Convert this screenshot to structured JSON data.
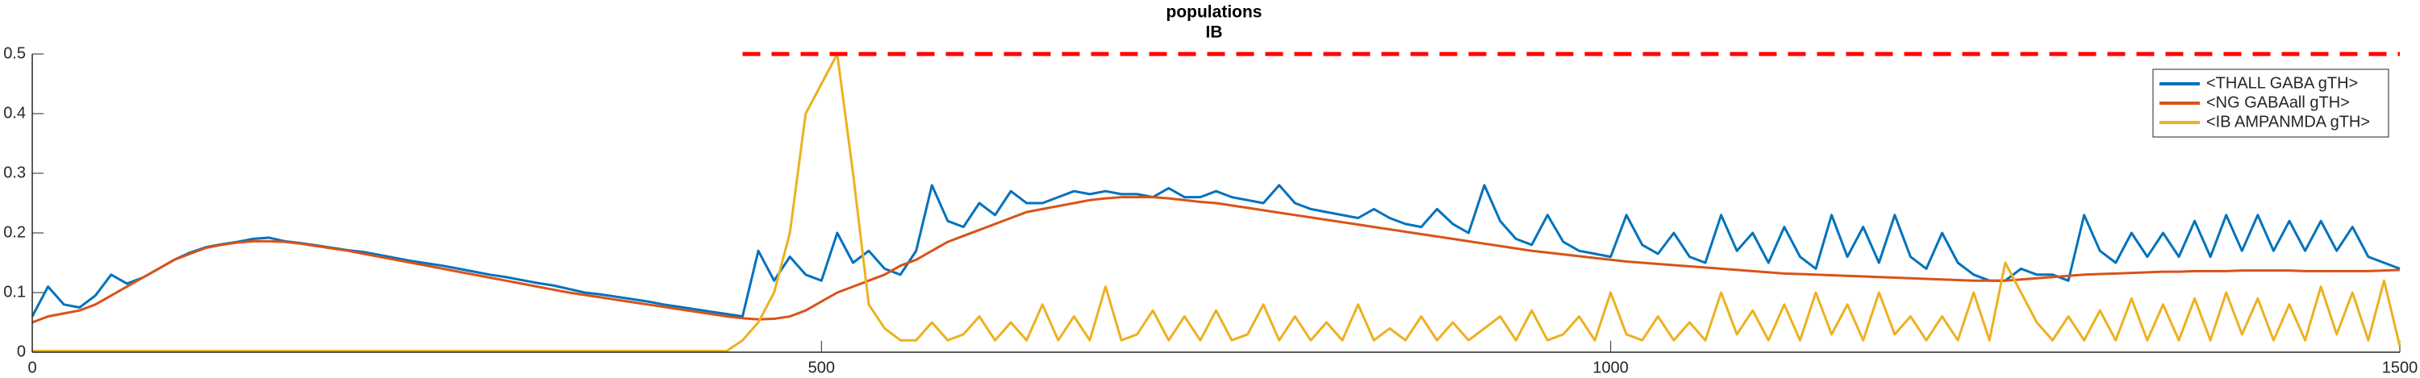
{
  "chart_data": {
    "type": "line",
    "title": "populations",
    "subtitle": "IB",
    "x": [
      0,
      10,
      20,
      30,
      40,
      50,
      60,
      70,
      80,
      90,
      100,
      110,
      120,
      130,
      140,
      150,
      160,
      170,
      180,
      190,
      200,
      210,
      220,
      230,
      240,
      250,
      260,
      270,
      280,
      290,
      300,
      310,
      320,
      330,
      340,
      350,
      360,
      370,
      380,
      390,
      400,
      410,
      420,
      430,
      440,
      450,
      460,
      470,
      480,
      490,
      500,
      510,
      520,
      530,
      540,
      550,
      560,
      570,
      580,
      590,
      600,
      610,
      620,
      630,
      640,
      650,
      660,
      670,
      680,
      690,
      700,
      710,
      720,
      730,
      740,
      750,
      760,
      770,
      780,
      790,
      800,
      810,
      820,
      830,
      840,
      850,
      860,
      870,
      880,
      890,
      900,
      910,
      920,
      930,
      940,
      950,
      960,
      970,
      980,
      990,
      1000,
      1010,
      1020,
      1030,
      1040,
      1050,
      1060,
      1070,
      1080,
      1090,
      1100,
      1110,
      1120,
      1130,
      1140,
      1150,
      1160,
      1170,
      1180,
      1190,
      1200,
      1210,
      1220,
      1230,
      1240,
      1250,
      1260,
      1270,
      1280,
      1290,
      1300,
      1310,
      1320,
      1330,
      1340,
      1350,
      1360,
      1370,
      1380,
      1390,
      1400,
      1410,
      1420,
      1430,
      1440,
      1450,
      1460,
      1470,
      1480,
      1490,
      1500
    ],
    "series": [
      {
        "name": "<THALL GABA gTH>",
        "color": "#0072bd",
        "values": [
          0.06,
          0.11,
          0.08,
          0.075,
          0.095,
          0.13,
          0.115,
          0.125,
          0.14,
          0.155,
          0.167,
          0.176,
          0.181,
          0.185,
          0.19,
          0.192,
          0.186,
          0.183,
          0.179,
          0.175,
          0.171,
          0.168,
          0.163,
          0.158,
          0.153,
          0.149,
          0.145,
          0.14,
          0.135,
          0.13,
          0.126,
          0.121,
          0.116,
          0.112,
          0.106,
          0.1,
          0.097,
          0.093,
          0.089,
          0.085,
          0.08,
          0.076,
          0.072,
          0.068,
          0.064,
          0.06,
          0.17,
          0.12,
          0.16,
          0.13,
          0.12,
          0.2,
          0.15,
          0.17,
          0.14,
          0.13,
          0.17,
          0.28,
          0.22,
          0.21,
          0.25,
          0.23,
          0.27,
          0.25,
          0.25,
          0.26,
          0.27,
          0.265,
          0.27,
          0.265,
          0.265,
          0.26,
          0.275,
          0.26,
          0.26,
          0.27,
          0.26,
          0.255,
          0.25,
          0.28,
          0.25,
          0.24,
          0.235,
          0.23,
          0.225,
          0.24,
          0.225,
          0.215,
          0.21,
          0.24,
          0.215,
          0.2,
          0.28,
          0.22,
          0.19,
          0.18,
          0.23,
          0.185,
          0.17,
          0.165,
          0.16,
          0.23,
          0.18,
          0.165,
          0.2,
          0.16,
          0.15,
          0.23,
          0.17,
          0.2,
          0.15,
          0.21,
          0.16,
          0.14,
          0.23,
          0.16,
          0.21,
          0.15,
          0.23,
          0.16,
          0.14,
          0.2,
          0.15,
          0.13,
          0.12,
          0.12,
          0.14,
          0.13,
          0.13,
          0.12,
          0.23,
          0.17,
          0.15,
          0.2,
          0.16,
          0.2,
          0.16,
          0.22,
          0.16,
          0.23,
          0.17,
          0.23,
          0.17,
          0.22,
          0.17,
          0.22,
          0.17,
          0.21,
          0.16,
          0.15,
          0.14
        ]
      },
      {
        "name": "<NG GABAall gTH>",
        "color": "#d95319",
        "values": [
          0.05,
          0.06,
          0.065,
          0.07,
          0.08,
          0.095,
          0.11,
          0.125,
          0.14,
          0.155,
          0.165,
          0.175,
          0.18,
          0.184,
          0.186,
          0.186,
          0.185,
          0.182,
          0.178,
          0.174,
          0.17,
          0.165,
          0.16,
          0.155,
          0.15,
          0.145,
          0.14,
          0.135,
          0.13,
          0.125,
          0.12,
          0.115,
          0.11,
          0.105,
          0.1,
          0.096,
          0.092,
          0.088,
          0.084,
          0.08,
          0.076,
          0.072,
          0.068,
          0.064,
          0.06,
          0.057,
          0.055,
          0.056,
          0.06,
          0.07,
          0.085,
          0.1,
          0.11,
          0.12,
          0.13,
          0.145,
          0.155,
          0.17,
          0.185,
          0.195,
          0.205,
          0.215,
          0.225,
          0.235,
          0.24,
          0.245,
          0.25,
          0.255,
          0.258,
          0.26,
          0.26,
          0.26,
          0.258,
          0.255,
          0.252,
          0.25,
          0.246,
          0.242,
          0.238,
          0.234,
          0.23,
          0.226,
          0.222,
          0.218,
          0.214,
          0.21,
          0.206,
          0.202,
          0.198,
          0.194,
          0.19,
          0.186,
          0.182,
          0.178,
          0.174,
          0.17,
          0.167,
          0.164,
          0.161,
          0.158,
          0.155,
          0.152,
          0.15,
          0.148,
          0.146,
          0.144,
          0.142,
          0.14,
          0.138,
          0.136,
          0.134,
          0.132,
          0.131,
          0.13,
          0.129,
          0.128,
          0.127,
          0.126,
          0.125,
          0.124,
          0.123,
          0.122,
          0.121,
          0.12,
          0.12,
          0.12,
          0.122,
          0.124,
          0.126,
          0.128,
          0.13,
          0.131,
          0.132,
          0.133,
          0.134,
          0.135,
          0.135,
          0.136,
          0.136,
          0.136,
          0.137,
          0.137,
          0.137,
          0.137,
          0.136,
          0.136,
          0.136,
          0.136,
          0.136,
          0.137,
          0.138
        ]
      },
      {
        "name": "<IB AMPANMDA gTH>",
        "color": "#edb120",
        "values": [
          0.002,
          0.002,
          0.002,
          0.002,
          0.002,
          0.002,
          0.002,
          0.002,
          0.002,
          0.002,
          0.002,
          0.002,
          0.002,
          0.002,
          0.002,
          0.002,
          0.002,
          0.002,
          0.002,
          0.002,
          0.002,
          0.002,
          0.002,
          0.002,
          0.002,
          0.002,
          0.002,
          0.002,
          0.002,
          0.002,
          0.002,
          0.002,
          0.002,
          0.002,
          0.002,
          0.002,
          0.002,
          0.002,
          0.002,
          0.002,
          0.002,
          0.002,
          0.002,
          0.002,
          0.002,
          0.02,
          0.05,
          0.1,
          0.2,
          0.4,
          0.45,
          0.5,
          0.3,
          0.08,
          0.04,
          0.02,
          0.02,
          0.05,
          0.02,
          0.03,
          0.06,
          0.02,
          0.05,
          0.02,
          0.08,
          0.02,
          0.06,
          0.02,
          0.11,
          0.02,
          0.03,
          0.07,
          0.02,
          0.06,
          0.02,
          0.07,
          0.02,
          0.03,
          0.08,
          0.02,
          0.06,
          0.02,
          0.05,
          0.02,
          0.08,
          0.02,
          0.04,
          0.02,
          0.06,
          0.02,
          0.05,
          0.02,
          0.04,
          0.06,
          0.02,
          0.07,
          0.02,
          0.03,
          0.06,
          0.02,
          0.1,
          0.03,
          0.02,
          0.06,
          0.02,
          0.05,
          0.02,
          0.1,
          0.03,
          0.07,
          0.02,
          0.08,
          0.02,
          0.1,
          0.03,
          0.08,
          0.02,
          0.1,
          0.03,
          0.06,
          0.02,
          0.06,
          0.02,
          0.1,
          0.02,
          0.15,
          0.1,
          0.05,
          0.02,
          0.06,
          0.02,
          0.07,
          0.02,
          0.09,
          0.02,
          0.08,
          0.02,
          0.09,
          0.02,
          0.1,
          0.03,
          0.09,
          0.02,
          0.08,
          0.02,
          0.11,
          0.03,
          0.1,
          0.02,
          0.12,
          0.01
        ]
      }
    ],
    "reference_line": {
      "y": 0.5,
      "x": [
        450,
        1500
      ],
      "color": "#ff0000"
    },
    "xlim": [
      0,
      1500
    ],
    "xticks": [
      0,
      500,
      1000,
      1500
    ],
    "ylim": [
      0,
      0.5
    ],
    "yticks": [
      0,
      0.1,
      0.2,
      0.3,
      0.4,
      0.5
    ],
    "legend": "top-right"
  }
}
